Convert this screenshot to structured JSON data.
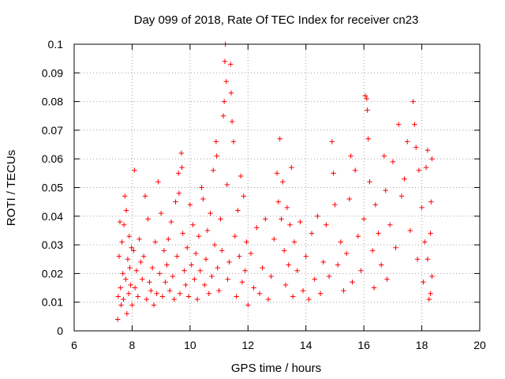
{
  "chart_data": {
    "type": "scatter",
    "title": "Day 099 of 2018, Rate Of TEC Index for receiver cn23",
    "xlabel": "GPS time / hours",
    "ylabel": "ROTI / TECUs",
    "xlim": [
      6,
      20
    ],
    "ylim": [
      0,
      0.1
    ],
    "x_ticks": [
      "6",
      "8",
      "10",
      "12",
      "14",
      "16",
      "18",
      "20"
    ],
    "y_ticks": [
      "0",
      "0.01",
      "0.02",
      "0.03",
      "0.04",
      "0.05",
      "0.06",
      "0.07",
      "0.08",
      "0.09",
      "0.1"
    ],
    "grid": true,
    "marker": "plus",
    "color": "#ff0000",
    "series": [
      {
        "points": [
          [
            7.5,
            0.004
          ],
          [
            7.52,
            0.012
          ],
          [
            7.55,
            0.026
          ],
          [
            7.58,
            0.038
          ],
          [
            7.6,
            0.015
          ],
          [
            7.62,
            0.009
          ],
          [
            7.65,
            0.031
          ],
          [
            7.68,
            0.02
          ],
          [
            7.7,
            0.011
          ],
          [
            7.72,
            0.037
          ],
          [
            7.75,
            0.047
          ],
          [
            7.78,
            0.018
          ],
          [
            7.8,
            0.042
          ],
          [
            7.82,
            0.006
          ],
          [
            7.85,
            0.025
          ],
          [
            7.88,
            0.013
          ],
          [
            7.9,
            0.033
          ],
          [
            7.92,
            0.022
          ],
          [
            7.95,
            0.016
          ],
          [
            7.98,
            0.029
          ],
          [
            8.0,
            0.009
          ],
          [
            8.05,
            0.028
          ],
          [
            8.08,
            0.056
          ],
          [
            8.1,
            0.015
          ],
          [
            8.15,
            0.021
          ],
          [
            8.2,
            0.012
          ],
          [
            8.25,
            0.032
          ],
          [
            8.3,
            0.024
          ],
          [
            8.35,
            0.018
          ],
          [
            8.4,
            0.026
          ],
          [
            8.45,
            0.047
          ],
          [
            8.5,
            0.011
          ],
          [
            8.55,
            0.039
          ],
          [
            8.6,
            0.017
          ],
          [
            8.65,
            0.014
          ],
          [
            8.7,
            0.022
          ],
          [
            8.75,
            0.009
          ],
          [
            8.8,
            0.031
          ],
          [
            8.85,
            0.013
          ],
          [
            8.9,
            0.052
          ],
          [
            8.95,
            0.02
          ],
          [
            9.0,
            0.041
          ],
          [
            9.05,
            0.012
          ],
          [
            9.1,
            0.028
          ],
          [
            9.15,
            0.017
          ],
          [
            9.2,
            0.023
          ],
          [
            9.25,
            0.032
          ],
          [
            9.3,
            0.014
          ],
          [
            9.35,
            0.038
          ],
          [
            9.4,
            0.019
          ],
          [
            9.45,
            0.011
          ],
          [
            9.5,
            0.045
          ],
          [
            9.55,
            0.026
          ],
          [
            9.6,
            0.055
          ],
          [
            9.62,
            0.048
          ],
          [
            9.65,
            0.013
          ],
          [
            9.7,
            0.062
          ],
          [
            9.72,
            0.057
          ],
          [
            9.75,
            0.034
          ],
          [
            9.8,
            0.021
          ],
          [
            9.85,
            0.016
          ],
          [
            9.9,
            0.029
          ],
          [
            9.95,
            0.012
          ],
          [
            10.0,
            0.044
          ],
          [
            10.05,
            0.023
          ],
          [
            10.1,
            0.037
          ],
          [
            10.15,
            0.018
          ],
          [
            10.2,
            0.027
          ],
          [
            10.25,
            0.011
          ],
          [
            10.3,
            0.033
          ],
          [
            10.35,
            0.021
          ],
          [
            10.4,
            0.05
          ],
          [
            10.45,
            0.046
          ],
          [
            10.5,
            0.016
          ],
          [
            10.55,
            0.025
          ],
          [
            10.6,
            0.035
          ],
          [
            10.65,
            0.013
          ],
          [
            10.7,
            0.041
          ],
          [
            10.75,
            0.019
          ],
          [
            10.8,
            0.056
          ],
          [
            10.85,
            0.03
          ],
          [
            10.9,
            0.066
          ],
          [
            10.92,
            0.061
          ],
          [
            10.95,
            0.022
          ],
          [
            11.0,
            0.014
          ],
          [
            11.05,
            0.039
          ],
          [
            11.1,
            0.028
          ],
          [
            11.15,
            0.075
          ],
          [
            11.18,
            0.08
          ],
          [
            11.2,
            0.094
          ],
          [
            11.22,
            0.1
          ],
          [
            11.25,
            0.087
          ],
          [
            11.28,
            0.051
          ],
          [
            11.3,
            0.018
          ],
          [
            11.35,
            0.024
          ],
          [
            11.4,
            0.093
          ],
          [
            11.42,
            0.083
          ],
          [
            11.45,
            0.073
          ],
          [
            11.5,
            0.066
          ],
          [
            11.55,
            0.033
          ],
          [
            11.6,
            0.012
          ],
          [
            11.65,
            0.042
          ],
          [
            11.7,
            0.026
          ],
          [
            11.75,
            0.054
          ],
          [
            11.8,
            0.017
          ],
          [
            11.85,
            0.047
          ],
          [
            11.9,
            0.021
          ],
          [
            11.95,
            0.031
          ],
          [
            12.0,
            0.009
          ],
          [
            12.1,
            0.027
          ],
          [
            12.2,
            0.015
          ],
          [
            12.3,
            0.036
          ],
          [
            12.4,
            0.013
          ],
          [
            12.5,
            0.022
          ],
          [
            12.6,
            0.039
          ],
          [
            12.7,
            0.011
          ],
          [
            12.8,
            0.019
          ],
          [
            12.9,
            0.032
          ],
          [
            13.0,
            0.055
          ],
          [
            13.05,
            0.045
          ],
          [
            13.1,
            0.067
          ],
          [
            13.15,
            0.039
          ],
          [
            13.2,
            0.052
          ],
          [
            13.25,
            0.028
          ],
          [
            13.3,
            0.016
          ],
          [
            13.35,
            0.043
          ],
          [
            13.4,
            0.023
          ],
          [
            13.45,
            0.037
          ],
          [
            13.5,
            0.057
          ],
          [
            13.55,
            0.012
          ],
          [
            13.6,
            0.031
          ],
          [
            13.7,
            0.021
          ],
          [
            13.8,
            0.038
          ],
          [
            13.9,
            0.014
          ],
          [
            14.0,
            0.026
          ],
          [
            14.1,
            0.011
          ],
          [
            14.2,
            0.034
          ],
          [
            14.3,
            0.018
          ],
          [
            14.4,
            0.04
          ],
          [
            14.5,
            0.013
          ],
          [
            14.6,
            0.024
          ],
          [
            14.7,
            0.037
          ],
          [
            14.8,
            0.019
          ],
          [
            14.9,
            0.066
          ],
          [
            14.95,
            0.055
          ],
          [
            15.0,
            0.044
          ],
          [
            15.1,
            0.023
          ],
          [
            15.2,
            0.031
          ],
          [
            15.3,
            0.014
          ],
          [
            15.4,
            0.027
          ],
          [
            15.5,
            0.046
          ],
          [
            15.55,
            0.061
          ],
          [
            15.6,
            0.017
          ],
          [
            15.7,
            0.056
          ],
          [
            15.8,
            0.033
          ],
          [
            15.9,
            0.021
          ],
          [
            16.0,
            0.039
          ],
          [
            16.05,
            0.082
          ],
          [
            16.1,
            0.081
          ],
          [
            16.12,
            0.077
          ],
          [
            16.15,
            0.067
          ],
          [
            16.2,
            0.052
          ],
          [
            16.3,
            0.028
          ],
          [
            16.35,
            0.015
          ],
          [
            16.4,
            0.044
          ],
          [
            16.5,
            0.034
          ],
          [
            16.6,
            0.023
          ],
          [
            16.7,
            0.061
          ],
          [
            16.75,
            0.049
          ],
          [
            16.8,
            0.018
          ],
          [
            16.9,
            0.037
          ],
          [
            17.0,
            0.059
          ],
          [
            17.1,
            0.029
          ],
          [
            17.2,
            0.072
          ],
          [
            17.3,
            0.047
          ],
          [
            17.4,
            0.053
          ],
          [
            17.5,
            0.066
          ],
          [
            17.6,
            0.035
          ],
          [
            17.7,
            0.08
          ],
          [
            17.75,
            0.072
          ],
          [
            17.8,
            0.064
          ],
          [
            17.85,
            0.025
          ],
          [
            17.9,
            0.056
          ],
          [
            18.0,
            0.043
          ],
          [
            18.05,
            0.017
          ],
          [
            18.1,
            0.031
          ],
          [
            18.15,
            0.057
          ],
          [
            18.2,
            0.063
          ],
          [
            18.25,
            0.011
          ],
          [
            18.3,
            0.034
          ],
          [
            18.32,
            0.045
          ],
          [
            18.35,
            0.06
          ],
          [
            18.35,
            0.019
          ],
          [
            18.3,
            0.013
          ],
          [
            18.2,
            0.025
          ]
        ]
      }
    ]
  }
}
